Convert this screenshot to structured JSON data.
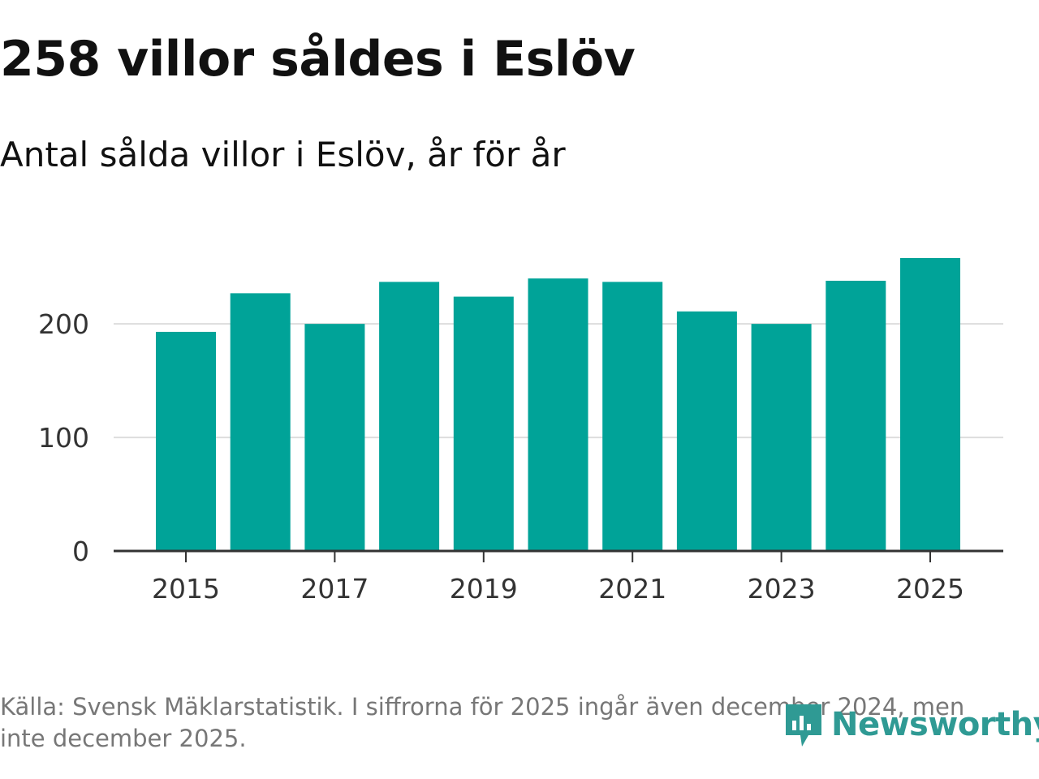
{
  "header": {
    "title": "258 villor såldes i Eslöv",
    "subtitle": "Antal sålda villor i Eslöv, år för år"
  },
  "chart_data": {
    "type": "bar",
    "categories": [
      "2015",
      "2016",
      "2017",
      "2018",
      "2019",
      "2020",
      "2021",
      "2022",
      "2023",
      "2024",
      "2025"
    ],
    "values": [
      193,
      227,
      200,
      237,
      224,
      240,
      237,
      211,
      200,
      238,
      258
    ],
    "x_tick_labels": [
      "2015",
      "2017",
      "2019",
      "2021",
      "2023",
      "2025"
    ],
    "y_ticks": [
      0,
      100,
      200
    ],
    "ylim": [
      0,
      270
    ],
    "bar_color": "#00a398",
    "grid": true,
    "xlabel": "",
    "ylabel": ""
  },
  "footer": {
    "source": "Källa: Svensk Mäklarstatistik. I siffrorna för 2025 ingår även december 2024, men inte december 2025.",
    "brand": "Newsworthy",
    "brand_color": "#2f9a94"
  }
}
